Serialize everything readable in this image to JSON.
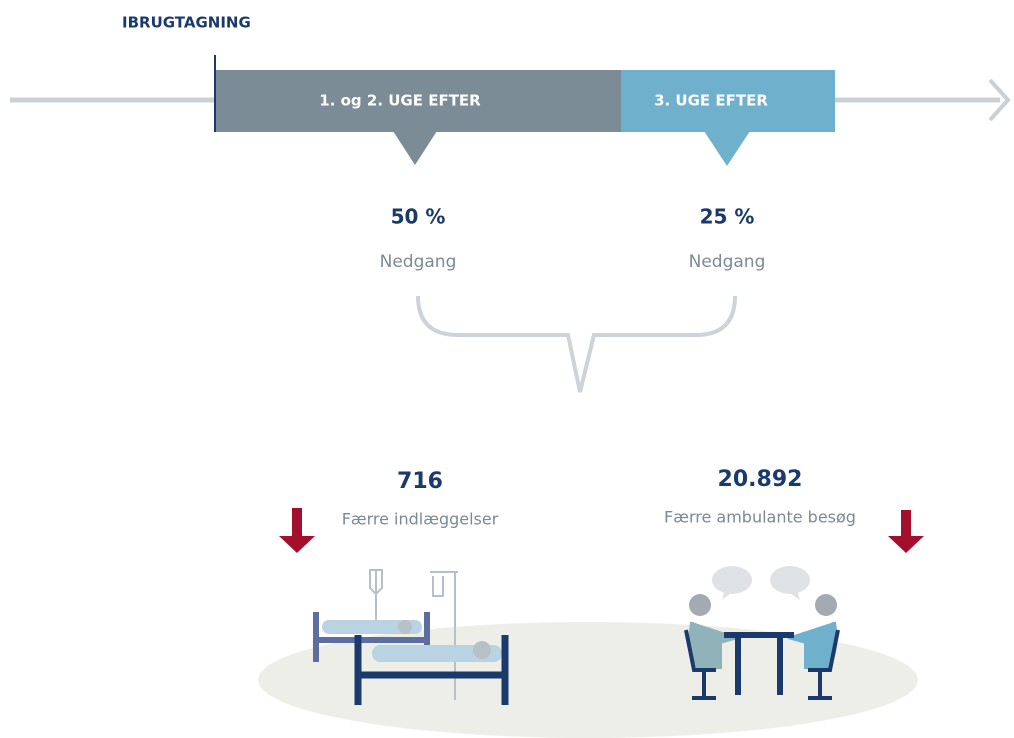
{
  "header": {
    "title": "IBRUGTAGNING"
  },
  "timeline": {
    "phases": [
      {
        "label": "1. og 2. UGE EFTER",
        "value": "50 %",
        "caption": "Nedgang"
      },
      {
        "label": "3. UGE EFTER",
        "value": "25 %",
        "caption": "Nedgang"
      }
    ]
  },
  "results": [
    {
      "value": "716",
      "caption": "Færre indlæggelser"
    },
    {
      "value": "20.892",
      "caption": "Færre ambulante besøg"
    }
  ]
}
